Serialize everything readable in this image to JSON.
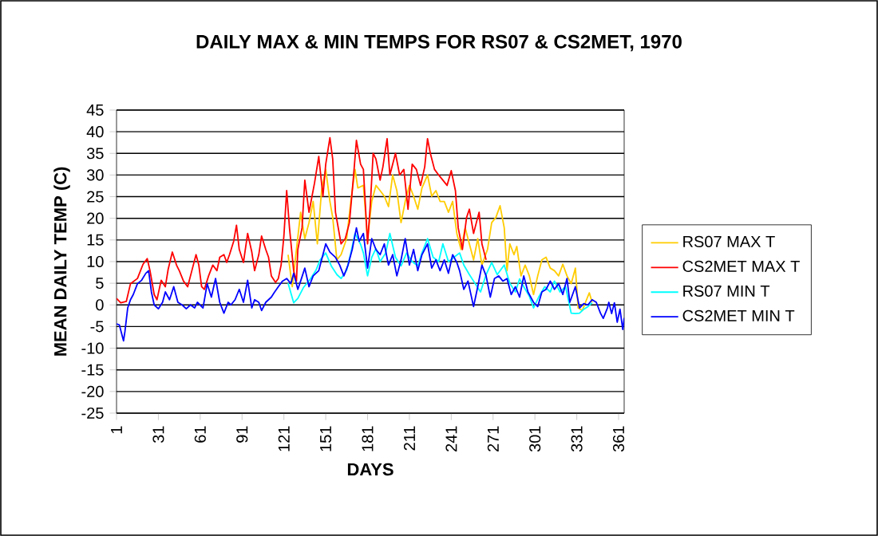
{
  "chart_data": {
    "type": "line",
    "title": "DAILY MAX & MIN TEMPS FOR RS07 & CS2MET, 1970",
    "xlabel": "DAYS",
    "ylabel": "MEAN DAILY TEMP (C)",
    "xlim": [
      1,
      365
    ],
    "xticks": [
      1,
      31,
      61,
      91,
      121,
      151,
      181,
      211,
      241,
      271,
      301,
      331,
      361
    ],
    "ylim": [
      -25,
      45
    ],
    "yticks": [
      -25,
      -20,
      -15,
      -10,
      -5,
      0,
      5,
      10,
      15,
      20,
      25,
      30,
      35,
      40,
      45
    ],
    "grid": "y",
    "legend": "right",
    "marker": "none",
    "line_style": "solid",
    "series": [
      {
        "name": "RS07 MAX T",
        "color": "#ffcc00",
        "x": [
          124,
          127,
          130,
          133,
          136,
          139,
          142,
          145,
          148,
          151,
          154,
          156,
          159,
          162,
          166,
          169,
          172,
          174,
          178,
          181,
          184,
          187,
          190,
          193,
          196,
          199,
          202,
          205,
          208,
          211,
          214,
          217,
          220,
          224,
          227,
          230,
          233,
          236,
          239,
          242,
          245,
          248,
          251,
          254,
          257,
          260,
          263,
          267,
          270,
          273,
          276,
          279,
          281,
          283,
          286,
          288,
          291,
          294,
          297,
          300,
          303,
          306,
          309,
          312,
          315,
          318,
          321,
          324,
          327,
          330,
          332,
          335,
          338,
          340,
          342
        ],
        "values": [
          11.6,
          4.2,
          12.8,
          21.4,
          15.3,
          19,
          23.9,
          14.1,
          26.4,
          31.3,
          23.9,
          20.2,
          10.4,
          11.6,
          15.3,
          23.9,
          31.3,
          27,
          27.6,
          15.3,
          23.9,
          27.6,
          26.4,
          25.1,
          22.7,
          30,
          26.4,
          19,
          23.9,
          27.6,
          25.1,
          22.1,
          27,
          30,
          25.1,
          26.4,
          23.9,
          23.9,
          21.4,
          23.9,
          16.5,
          12.8,
          17.8,
          14.1,
          10.4,
          15.3,
          9.2,
          12.8,
          19,
          20.2,
          22.9,
          17.8,
          7.9,
          14.1,
          11.6,
          13.5,
          6.7,
          9.2,
          6.7,
          2.4,
          6.7,
          10.4,
          11,
          8.5,
          7.9,
          6.7,
          9.4,
          6.7,
          4.9,
          8.5,
          -0.7,
          -1.3,
          1.2,
          2.8,
          0.6
        ]
      },
      {
        "name": "CS2MET MAX T",
        "color": "#ff0000",
        "x": [
          1,
          4,
          8,
          11,
          16,
          20,
          23,
          25,
          28,
          30,
          33,
          36,
          38,
          41,
          44,
          46,
          49,
          52,
          55,
          58,
          60,
          62,
          64,
          67,
          70,
          73,
          75,
          78,
          80,
          82,
          85,
          87,
          89,
          92,
          95,
          98,
          100,
          103,
          105,
          108,
          110,
          112,
          115,
          117,
          119,
          121,
          123,
          125,
          128,
          130,
          131,
          134,
          136,
          138,
          139,
          143,
          146,
          149,
          151,
          154,
          156,
          158,
          162,
          165,
          168,
          171,
          173,
          176,
          178,
          181,
          183,
          185,
          187,
          190,
          192,
          195,
          197,
          201,
          204,
          207,
          210,
          213,
          216,
          219,
          222,
          224,
          226,
          229,
          232,
          235,
          238,
          241,
          244,
          246,
          249,
          252,
          254,
          257,
          259,
          261,
          263,
          266
        ],
        "values": [
          1.5,
          0.5,
          0.8,
          4.9,
          6.1,
          9.4,
          10.7,
          7.9,
          2.4,
          1.2,
          5.7,
          4.2,
          8.2,
          12.2,
          9.2,
          7.9,
          5.5,
          4.2,
          7.9,
          11.6,
          9.2,
          4.2,
          3.6,
          6.7,
          9.2,
          7.9,
          11,
          11.6,
          9.8,
          11.6,
          14.7,
          18.4,
          12.8,
          9.8,
          16.5,
          12.2,
          7.9,
          11.6,
          15.9,
          12.8,
          11,
          6.7,
          5.2,
          6.1,
          9.2,
          15.9,
          26.4,
          17.8,
          7.9,
          5.5,
          12.8,
          17.8,
          28.8,
          23.9,
          21.4,
          28.2,
          34.3,
          25.1,
          32.5,
          38.6,
          33.7,
          21.4,
          14.1,
          15.3,
          19,
          30,
          38,
          32.5,
          31.3,
          14.1,
          23.3,
          35,
          33.7,
          28.8,
          31.9,
          38.4,
          30,
          35,
          30,
          31.3,
          22.1,
          32.5,
          31.3,
          27.6,
          31.9,
          38.4,
          35,
          31.3,
          30,
          28.8,
          27.6,
          31,
          26.4,
          17.8,
          12.8,
          20.2,
          22.1,
          16.5,
          19,
          21.4,
          14.1,
          10.4
        ]
      },
      {
        "name": "RS07 MIN T",
        "color": "#00ffff",
        "x": [
          124,
          128,
          131,
          135,
          140,
          144,
          147,
          151,
          155,
          159,
          162,
          166,
          169,
          172,
          176,
          178,
          181,
          184,
          187,
          190,
          194,
          197,
          201,
          205,
          209,
          213,
          217,
          220,
          224,
          228,
          232,
          235,
          239,
          243,
          247,
          250,
          254,
          258,
          262,
          266,
          270,
          274,
          279,
          283,
          287,
          290,
          293,
          297,
          300,
          304,
          308,
          312,
          315,
          319,
          323,
          327,
          330,
          333,
          336,
          339,
          342
        ],
        "values": [
          5,
          0.5,
          1.5,
          4,
          6,
          8,
          10.4,
          12,
          9,
          7,
          6.1,
          8,
          12,
          16.5,
          14,
          12,
          6.7,
          11,
          13,
          10,
          12,
          16.5,
          11,
          9,
          12,
          10,
          9,
          12,
          15.3,
          11,
          10,
          14.1,
          10,
          11,
          12,
          9.2,
          7,
          5,
          3,
          7,
          9.8,
          7,
          9.2,
          5,
          3,
          6,
          4.2,
          2,
          -0.7,
          2,
          4.2,
          3,
          5.5,
          3,
          4.2,
          -1.9,
          -2,
          -1.9,
          -1,
          -0.4,
          0.5
        ]
      },
      {
        "name": "CS2MET MIN T",
        "color": "#0000ff",
        "x": [
          1,
          3,
          6,
          7,
          9,
          11,
          13,
          16,
          19,
          22,
          24,
          26,
          28,
          31,
          34,
          36,
          39,
          42,
          45,
          48,
          51,
          54,
          57,
          59,
          63,
          66,
          69,
          72,
          75,
          78,
          81,
          83,
          86,
          89,
          92,
          95,
          98,
          100,
          103,
          105,
          108,
          112,
          114,
          117,
          120,
          123,
          126,
          128,
          131,
          133,
          136,
          139,
          142,
          146,
          149,
          151,
          154,
          158,
          161,
          164,
          167,
          170,
          173,
          175,
          178,
          181,
          184,
          187,
          190,
          193,
          196,
          199,
          202,
          205,
          208,
          211,
          214,
          217,
          220,
          224,
          227,
          230,
          233,
          236,
          239,
          242,
          245,
          247,
          250,
          253,
          257,
          260,
          263,
          266,
          269,
          272,
          275,
          278,
          281,
          284,
          287,
          290,
          293,
          296,
          300,
          303,
          306,
          309,
          312,
          315,
          318,
          321,
          324,
          326,
          330,
          333,
          336,
          339,
          342,
          345,
          348,
          350,
          353,
          354,
          356,
          358,
          360,
          362,
          364,
          365
        ],
        "values": [
          -4.4,
          -4.6,
          -8.3,
          -6.2,
          -0.7,
          1.2,
          2.4,
          4.9,
          5.7,
          7.3,
          7.9,
          3,
          0,
          -0.9,
          0.6,
          3,
          1.2,
          4.2,
          0.6,
          0,
          -0.9,
          0,
          -0.7,
          0.6,
          -0.7,
          4.9,
          1.8,
          6.1,
          0.6,
          -1.9,
          0.6,
          0,
          1.2,
          3.6,
          0.6,
          5.7,
          -0.7,
          1.2,
          0.6,
          -1.3,
          0.6,
          1.8,
          2.8,
          4.2,
          5.5,
          6.1,
          4.9,
          7.3,
          3.6,
          5.5,
          8.5,
          4.2,
          6.7,
          7.9,
          11.6,
          14.1,
          12.2,
          11,
          9.2,
          6.7,
          9.2,
          12.8,
          17.8,
          14.7,
          16.5,
          8.5,
          15.3,
          12.8,
          11.6,
          14.1,
          9.2,
          11.6,
          6.7,
          10.4,
          15.3,
          9.2,
          12.8,
          7.9,
          11.6,
          14.1,
          8.5,
          10.4,
          7.9,
          10.4,
          7.3,
          11.6,
          9.8,
          7.9,
          3.6,
          5.5,
          -0.4,
          4.2,
          9.2,
          6.7,
          1.8,
          6.1,
          6.7,
          5.5,
          6.1,
          2.4,
          4.2,
          1.8,
          6.7,
          3,
          0.6,
          -0.4,
          3,
          3.6,
          5.5,
          3.6,
          4.9,
          2.4,
          6.1,
          0.6,
          4.2,
          -0.7,
          0.3,
          0,
          1.2,
          0.6,
          -1.9,
          -3.1,
          -0.7,
          0.6,
          -2,
          0.5,
          -4,
          -1,
          -5.7,
          -3
        ]
      }
    ]
  }
}
